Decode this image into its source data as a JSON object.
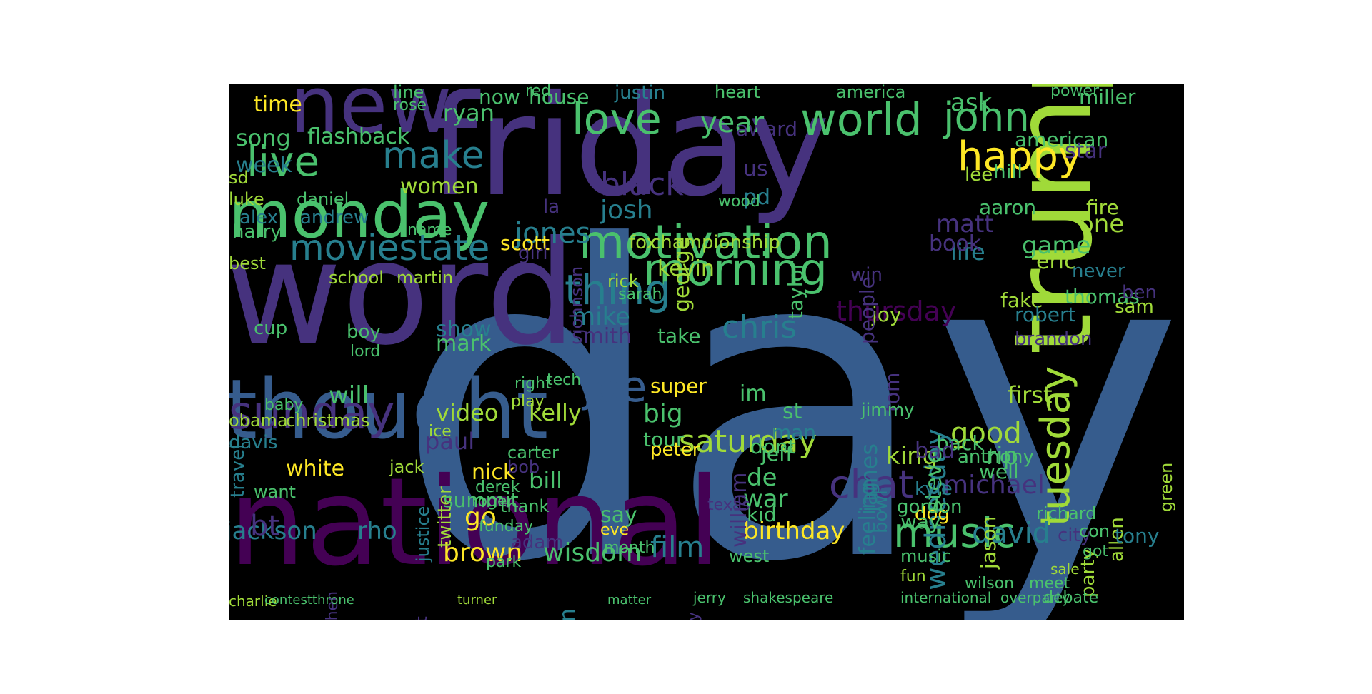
{
  "figure": {
    "background": "#000000",
    "page_background": "#ffffff",
    "palette": [
      "#440154",
      "#46327e",
      "#365c8d",
      "#277f8e",
      "#1fa187",
      "#4ac16d",
      "#a0da39",
      "#fde725"
    ]
  },
  "words": [
    {
      "text": "day",
      "color": "#365c8d"
    },
    {
      "text": "friday",
      "color": "#46327e"
    },
    {
      "text": "word",
      "color": "#46327e"
    },
    {
      "text": "national",
      "color": "#440154"
    },
    {
      "text": "trump",
      "color": "#a0da39"
    },
    {
      "text": "thought",
      "color": "#365c8d"
    },
    {
      "text": "monday",
      "color": "#4ac16d"
    },
    {
      "text": "new",
      "color": "#46327e"
    },
    {
      "text": "morning",
      "color": "#4ac16d"
    },
    {
      "text": "motivation",
      "color": "#4ac16d"
    },
    {
      "text": "world",
      "color": "#4ac16d"
    },
    {
      "text": "love",
      "color": "#4ac16d"
    },
    {
      "text": "live",
      "color": "#4ac16d"
    },
    {
      "text": "john",
      "color": "#4ac16d"
    },
    {
      "text": "happy",
      "color": "#fde725"
    },
    {
      "text": "sunday",
      "color": "#46327e"
    },
    {
      "text": "tuesday",
      "color": "#a0da39"
    },
    {
      "text": "moviestate",
      "color": "#277f8e"
    },
    {
      "text": "music",
      "color": "#4ac16d"
    },
    {
      "text": "make",
      "color": "#277f8e"
    },
    {
      "text": "thing",
      "color": "#277f8e"
    },
    {
      "text": "joe",
      "color": "#365c8d"
    },
    {
      "text": "saturday",
      "color": "#a0da39"
    },
    {
      "text": "chat",
      "color": "#46327e"
    },
    {
      "text": "chris",
      "color": "#277f8e"
    },
    {
      "text": "wednesday",
      "color": "#277f8e"
    },
    {
      "text": "black",
      "color": "#46327e"
    },
    {
      "text": "thursday",
      "color": "#440154"
    },
    {
      "text": "year",
      "color": "#4ac16d"
    },
    {
      "text": "good",
      "color": "#a0da39"
    },
    {
      "text": "david",
      "color": "#277f8e"
    },
    {
      "text": "brown",
      "color": "#fde725"
    },
    {
      "text": "wisdom",
      "color": "#4ac16d"
    },
    {
      "text": "birthday",
      "color": "#fde725"
    },
    {
      "text": "jackson",
      "color": "#277f8e"
    },
    {
      "text": "rho",
      "color": "#277f8e"
    },
    {
      "text": "michael",
      "color": "#46327e"
    },
    {
      "text": "video",
      "color": "#a0da39"
    },
    {
      "text": "kelly",
      "color": "#a0da39"
    },
    {
      "text": "flashback",
      "color": "#4ac16d"
    },
    {
      "text": "song",
      "color": "#4ac16d"
    },
    {
      "text": "time",
      "color": "#fde725"
    },
    {
      "text": "week",
      "color": "#277f8e"
    },
    {
      "text": "women",
      "color": "#a0da39"
    },
    {
      "text": "jones",
      "color": "#277f8e"
    },
    {
      "text": "josh",
      "color": "#277f8e"
    },
    {
      "text": "game",
      "color": "#4ac16d"
    },
    {
      "text": "matt",
      "color": "#46327e"
    },
    {
      "text": "twitter",
      "color": "#a0da39"
    },
    {
      "text": "mark",
      "color": "#4ac16d"
    },
    {
      "text": "mike",
      "color": "#277f8e"
    },
    {
      "text": "smith",
      "color": "#46327e"
    },
    {
      "text": "show",
      "color": "#277f8e"
    },
    {
      "text": "will",
      "color": "#4ac16d"
    },
    {
      "text": "big",
      "color": "#4ac16d"
    },
    {
      "text": "tour",
      "color": "#4ac16d"
    },
    {
      "text": "first",
      "color": "#a0da39"
    },
    {
      "text": "king",
      "color": "#a0da39"
    },
    {
      "text": "back",
      "color": "#4ac16d"
    },
    {
      "text": "white",
      "color": "#fde725"
    },
    {
      "text": "nick",
      "color": "#fde725"
    },
    {
      "text": "bill",
      "color": "#4ac16d"
    },
    {
      "text": "paul",
      "color": "#46327e"
    },
    {
      "text": "say",
      "color": "#4ac16d"
    },
    {
      "text": "go",
      "color": "#fde725"
    },
    {
      "text": "film",
      "color": "#277f8e"
    },
    {
      "text": "war",
      "color": "#4ac16d"
    },
    {
      "text": "de",
      "color": "#4ac16d"
    },
    {
      "text": "jeff",
      "color": "#4ac16d"
    },
    {
      "text": "kid",
      "color": "#4ac16d"
    },
    {
      "text": "summit",
      "color": "#4ac16d"
    },
    {
      "text": "william",
      "color": "#46327e"
    },
    {
      "text": "james",
      "color": "#277f8e"
    },
    {
      "text": "feeling",
      "color": "#277f8e"
    },
    {
      "text": "life",
      "color": "#277f8e"
    },
    {
      "text": "fake",
      "color": "#a0da39"
    },
    {
      "text": "joy",
      "color": "#a0da39"
    },
    {
      "text": "robert",
      "color": "#277f8e"
    },
    {
      "text": "thomas",
      "color": "#4ac16d"
    },
    {
      "text": "eric",
      "color": "#a0da39"
    },
    {
      "text": "one",
      "color": "#a0da39"
    },
    {
      "text": "fire",
      "color": "#a0da39"
    },
    {
      "text": "party",
      "color": "#a0da39"
    },
    {
      "text": "allen",
      "color": "#a0da39"
    },
    {
      "text": "tony",
      "color": "#277f8e"
    },
    {
      "text": "miller",
      "color": "#4ac16d"
    },
    {
      "text": "house",
      "color": "#4ac16d"
    },
    {
      "text": "now",
      "color": "#4ac16d"
    },
    {
      "text": "ryan",
      "color": "#4ac16d"
    },
    {
      "text": "ask",
      "color": "#4ac16d"
    },
    {
      "text": "george",
      "color": "#a0da39"
    },
    {
      "text": "kevin",
      "color": "#a0da39"
    },
    {
      "text": "harry",
      "color": "#4ac16d"
    },
    {
      "text": "alex",
      "color": "#277f8e"
    },
    {
      "text": "andrew",
      "color": "#277f8e"
    },
    {
      "text": "travel",
      "color": "#277f8e"
    },
    {
      "text": "cup",
      "color": "#4ac16d"
    },
    {
      "text": "obama",
      "color": "#a0da39"
    },
    {
      "text": "christmas",
      "color": "#a0da39"
    },
    {
      "text": "davis",
      "color": "#277f8e"
    },
    {
      "text": "best",
      "color": "#a0da39"
    },
    {
      "text": "want",
      "color": "#4ac16d"
    },
    {
      "text": "bt",
      "color": "#46327e"
    },
    {
      "text": "jordan",
      "color": "#277f8e"
    },
    {
      "text": "ufc",
      "color": "#4ac16d"
    },
    {
      "text": "young",
      "color": "#277f8e"
    },
    {
      "text": "rip",
      "color": "#4ac16d"
    },
    {
      "text": "well",
      "color": "#4ac16d"
    },
    {
      "text": "steve",
      "color": "#4ac16d"
    },
    {
      "text": "jason",
      "color": "#a0da39"
    },
    {
      "text": "dont",
      "color": "#4ac16d"
    },
    {
      "text": "man",
      "color": "#277f8e"
    },
    {
      "text": "st",
      "color": "#4ac16d"
    },
    {
      "text": "im",
      "color": "#4ac16d"
    },
    {
      "text": "super",
      "color": "#fde725"
    },
    {
      "text": "peter",
      "color": "#fde725"
    },
    {
      "text": "star",
      "color": "#46327e"
    },
    {
      "text": "american",
      "color": "#4ac16d"
    },
    {
      "text": "aaron",
      "color": "#4ac16d"
    },
    {
      "text": "book",
      "color": "#46327e"
    },
    {
      "text": "brandon",
      "color": "#46327e"
    },
    {
      "text": "bad",
      "color": "#46327e"
    },
    {
      "text": "dog",
      "color": "#fde725"
    },
    {
      "text": "gordon",
      "color": "#4ac16d"
    },
    {
      "text": "kyle",
      "color": "#277f8e"
    },
    {
      "text": "anthony",
      "color": "#4ac16d"
    },
    {
      "text": "richard",
      "color": "#4ac16d"
    },
    {
      "text": "city",
      "color": "#46327e"
    },
    {
      "text": "us",
      "color": "#46327e"
    },
    {
      "text": "pd",
      "color": "#277f8e"
    },
    {
      "text": "taylor",
      "color": "#4ac16d"
    },
    {
      "text": "award",
      "color": "#46327e"
    },
    {
      "text": "lee",
      "color": "#a0da39"
    },
    {
      "text": "tom",
      "color": "#46327e"
    },
    {
      "text": "people",
      "color": "#46327e"
    },
    {
      "text": "win",
      "color": "#46327e"
    },
    {
      "text": "sam",
      "color": "#a0da39"
    },
    {
      "text": "ben",
      "color": "#46327e"
    },
    {
      "text": "green",
      "color": "#a0da39"
    },
    {
      "text": "never",
      "color": "#277f8e"
    },
    {
      "text": "fox",
      "color": "#a0da39"
    },
    {
      "text": "championship",
      "color": "#a0da39"
    },
    {
      "text": "scott",
      "color": "#fde725"
    },
    {
      "text": "girl",
      "color": "#46327e"
    },
    {
      "text": "take",
      "color": "#4ac16d"
    },
    {
      "text": "jimmy",
      "color": "#4ac16d"
    },
    {
      "text": "bowl",
      "color": "#277f8e"
    },
    {
      "text": "way",
      "color": "#4ac16d"
    },
    {
      "text": "hill",
      "color": "#4ac16d"
    },
    {
      "text": "la",
      "color": "#46327e"
    },
    {
      "text": "johnson",
      "color": "#46327e"
    },
    {
      "text": "daniel",
      "color": "#4ac16d"
    },
    {
      "text": "luke",
      "color": "#a0da39"
    },
    {
      "text": "sd",
      "color": "#a0da39"
    },
    {
      "text": "school",
      "color": "#a0da39"
    },
    {
      "text": "martin",
      "color": "#a0da39"
    },
    {
      "text": "boy",
      "color": "#4ac16d"
    },
    {
      "text": "lord",
      "color": "#4ac16d"
    },
    {
      "text": "baby",
      "color": "#4ac16d"
    },
    {
      "text": "justice",
      "color": "#277f8e"
    },
    {
      "text": "jack",
      "color": "#a0da39"
    },
    {
      "text": "ice",
      "color": "#a0da39"
    },
    {
      "text": "thank",
      "color": "#4ac16d"
    },
    {
      "text": "carter",
      "color": "#4ac16d"
    },
    {
      "text": "bob",
      "color": "#46327e"
    },
    {
      "text": "red",
      "color": "#4ac16d"
    },
    {
      "text": "line",
      "color": "#4ac16d"
    },
    {
      "text": "rose",
      "color": "#4ac16d"
    },
    {
      "text": "justin",
      "color": "#277f8e"
    },
    {
      "text": "heart",
      "color": "#4ac16d"
    },
    {
      "text": "america",
      "color": "#4ac16d"
    },
    {
      "text": "power",
      "color": "#4ac16d"
    },
    {
      "text": "president",
      "color": "#46327e"
    },
    {
      "text": "stephen",
      "color": "#46327e"
    },
    {
      "text": "holiday",
      "color": "#46327e"
    },
    {
      "text": "texas",
      "color": "#46327e"
    },
    {
      "text": "west",
      "color": "#4ac16d"
    },
    {
      "text": "adam",
      "color": "#46327e"
    },
    {
      "text": "park",
      "color": "#4ac16d"
    },
    {
      "text": "music",
      "color": "#4ac16d"
    },
    {
      "text": "con",
      "color": "#4ac16d"
    },
    {
      "text": "got",
      "color": "#4ac16d"
    },
    {
      "text": "name",
      "color": "#4ac16d"
    },
    {
      "text": "rick",
      "color": "#a0da39"
    },
    {
      "text": "sarah",
      "color": "#4ac16d"
    },
    {
      "text": "wood",
      "color": "#4ac16d"
    },
    {
      "text": "tech",
      "color": "#4ac16d"
    },
    {
      "text": "right",
      "color": "#4ac16d"
    },
    {
      "text": "play",
      "color": "#a0da39"
    },
    {
      "text": "derek",
      "color": "#4ac16d"
    },
    {
      "text": "roger",
      "color": "#4ac16d"
    },
    {
      "text": "eve",
      "color": "#fde725"
    },
    {
      "text": "month",
      "color": "#4ac16d"
    },
    {
      "text": "funday",
      "color": "#4ac16d"
    },
    {
      "text": "fun",
      "color": "#a0da39"
    },
    {
      "text": "wilson",
      "color": "#4ac16d"
    },
    {
      "text": "meet",
      "color": "#4ac16d"
    },
    {
      "text": "debate",
      "color": "#4ac16d"
    },
    {
      "text": "international",
      "color": "#4ac16d"
    },
    {
      "text": "overparty",
      "color": "#4ac16d"
    },
    {
      "text": "sale",
      "color": "#a0da39"
    },
    {
      "text": "jerry",
      "color": "#4ac16d"
    },
    {
      "text": "shakespeare",
      "color": "#4ac16d"
    },
    {
      "text": "charlie",
      "color": "#a0da39"
    },
    {
      "text": "contestthrone",
      "color": "#4ac16d"
    },
    {
      "text": "turner",
      "color": "#a0da39"
    },
    {
      "text": "matter",
      "color": "#4ac16d"
    }
  ]
}
